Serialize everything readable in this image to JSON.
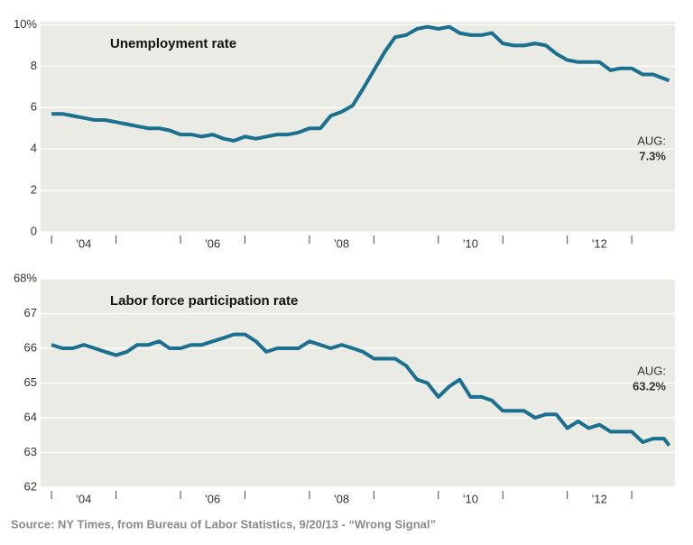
{
  "chart_data": [
    {
      "type": "line",
      "title": "Unemployment rate",
      "x": [
        2004,
        2004.17,
        2004.33,
        2004.5,
        2004.67,
        2004.83,
        2005,
        2005.17,
        2005.33,
        2005.5,
        2005.67,
        2005.83,
        2006,
        2006.17,
        2006.33,
        2006.5,
        2006.67,
        2006.83,
        2007,
        2007.17,
        2007.33,
        2007.5,
        2007.67,
        2007.83,
        2008,
        2008.17,
        2008.33,
        2008.5,
        2008.67,
        2008.83,
        2009,
        2009.17,
        2009.33,
        2009.5,
        2009.67,
        2009.83,
        2010,
        2010.17,
        2010.33,
        2010.5,
        2010.67,
        2010.83,
        2011,
        2011.17,
        2011.33,
        2011.5,
        2011.67,
        2011.83,
        2012,
        2012.17,
        2012.33,
        2012.5,
        2012.67,
        2012.83,
        2013,
        2013.17,
        2013.33,
        2013.5,
        2013.58
      ],
      "series": [
        {
          "name": "Unemployment rate",
          "color": "#1b6f8f",
          "values": [
            5.7,
            5.7,
            5.6,
            5.5,
            5.4,
            5.4,
            5.3,
            5.2,
            5.1,
            5.0,
            5.0,
            4.9,
            4.7,
            4.7,
            4.6,
            4.7,
            4.5,
            4.4,
            4.6,
            4.5,
            4.6,
            4.7,
            4.7,
            4.8,
            5.0,
            5.0,
            5.6,
            5.8,
            6.1,
            6.9,
            7.8,
            8.7,
            9.4,
            9.5,
            9.8,
            9.9,
            9.8,
            9.9,
            9.6,
            9.5,
            9.5,
            9.6,
            9.1,
            9.0,
            9.0,
            9.1,
            9.0,
            8.6,
            8.3,
            8.2,
            8.2,
            8.2,
            7.8,
            7.9,
            7.9,
            7.6,
            7.6,
            7.4,
            7.3
          ]
        }
      ],
      "xlim": [
        2003.83,
        2013.67
      ],
      "xticks": [
        {
          "value": 2004.5,
          "label": "'04"
        },
        {
          "value": 2006.5,
          "label": "'06"
        },
        {
          "value": 2008.5,
          "label": "'08"
        },
        {
          "value": 2010.5,
          "label": "'10"
        },
        {
          "value": 2012.5,
          "label": "'12"
        }
      ],
      "xminorticks": [
        2004,
        2005,
        2006,
        2007,
        2008,
        2009,
        2010,
        2011,
        2012,
        2013
      ],
      "ylim": [
        0,
        10.15
      ],
      "yticks": [
        0,
        2,
        4,
        6,
        8,
        {
          "value": 10,
          "label": "10%"
        }
      ],
      "grid": true,
      "annotation": [
        "AUG:",
        "7.3%"
      ]
    },
    {
      "type": "line",
      "title": "Labor force participation rate",
      "x": [
        2004,
        2004.17,
        2004.33,
        2004.5,
        2004.67,
        2004.83,
        2005,
        2005.17,
        2005.33,
        2005.5,
        2005.67,
        2005.83,
        2006,
        2006.17,
        2006.33,
        2006.5,
        2006.67,
        2006.83,
        2007,
        2007.17,
        2007.33,
        2007.5,
        2007.67,
        2007.83,
        2008,
        2008.17,
        2008.33,
        2008.5,
        2008.67,
        2008.83,
        2009,
        2009.17,
        2009.33,
        2009.5,
        2009.67,
        2009.83,
        2010,
        2010.17,
        2010.33,
        2010.5,
        2010.67,
        2010.83,
        2011,
        2011.17,
        2011.33,
        2011.5,
        2011.67,
        2011.83,
        2012,
        2012.17,
        2012.33,
        2012.5,
        2012.67,
        2012.83,
        2013,
        2013.17,
        2013.33,
        2013.5,
        2013.58
      ],
      "series": [
        {
          "name": "Labor force participation rate",
          "color": "#1b6f8f",
          "values": [
            66.1,
            66.0,
            66.0,
            66.1,
            66.0,
            65.9,
            65.8,
            65.9,
            66.1,
            66.1,
            66.2,
            66.0,
            66.0,
            66.1,
            66.1,
            66.2,
            66.3,
            66.4,
            66.4,
            66.2,
            65.9,
            66.0,
            66.0,
            66.0,
            66.2,
            66.1,
            66.0,
            66.1,
            66.0,
            65.9,
            65.7,
            65.7,
            65.7,
            65.5,
            65.1,
            65.0,
            64.6,
            64.9,
            65.1,
            64.6,
            64.6,
            64.5,
            64.2,
            64.2,
            64.2,
            64.0,
            64.1,
            64.1,
            63.7,
            63.9,
            63.7,
            63.8,
            63.6,
            63.6,
            63.6,
            63.3,
            63.4,
            63.4,
            63.2
          ]
        }
      ],
      "xlim": [
        2003.83,
        2013.67
      ],
      "xticks": [
        {
          "value": 2004.5,
          "label": "'04"
        },
        {
          "value": 2006.5,
          "label": "'06"
        },
        {
          "value": 2008.5,
          "label": "'08"
        },
        {
          "value": 2010.5,
          "label": "'10"
        },
        {
          "value": 2012.5,
          "label": "'12"
        }
      ],
      "xminorticks": [
        2004,
        2005,
        2006,
        2007,
        2008,
        2009,
        2010,
        2011,
        2012,
        2013
      ],
      "ylim": [
        62,
        68
      ],
      "yticks": [
        62,
        63,
        64,
        65,
        66,
        67,
        {
          "value": 68,
          "label": "68%"
        }
      ],
      "grid": true,
      "annotation": [
        "AUG:",
        "63.2%"
      ]
    }
  ],
  "source": "Source: NY Times, from Bureau of Labor Statistics, 9/20/13 - “Wrong Signal”"
}
